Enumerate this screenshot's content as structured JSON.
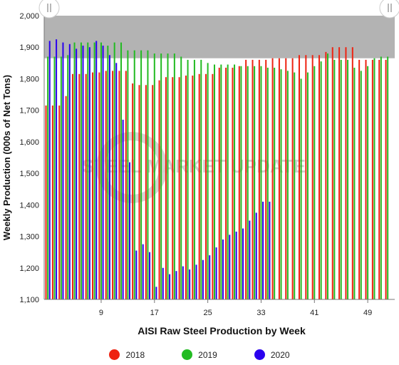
{
  "colors": {
    "series_2018": "#ee2211",
    "series_2019": "#22bb22",
    "series_2020": "#2a00ee",
    "plot_band": "#b3b3b3"
  },
  "watermark": "STEEL MARKET UPDATE",
  "chart_data": {
    "type": "bar",
    "xlabel": "AISI Raw Steel Production by Week",
    "ylabel": "Weekly Production (000s of Net Tons)",
    "ylim": [
      1100,
      2000
    ],
    "xlim": [
      1,
      52
    ],
    "yticks": [
      "1,100",
      "1,200",
      "1,300",
      "1,400",
      "1,500",
      "1,600",
      "1,700",
      "1,800",
      "1,900",
      "2,000"
    ],
    "xticks": [
      "9",
      "17",
      "25",
      "33",
      "41",
      "49"
    ],
    "grid": false,
    "legend_position": "bottom",
    "series": [
      {
        "name": "2018",
        "x": [
          1,
          2,
          3,
          4,
          5,
          6,
          7,
          8,
          9,
          10,
          11,
          12,
          13,
          14,
          15,
          16,
          17,
          18,
          19,
          20,
          21,
          22,
          23,
          24,
          25,
          26,
          27,
          28,
          29,
          30,
          31,
          32,
          33,
          34,
          35,
          36,
          37,
          38,
          39,
          40,
          41,
          42,
          43,
          44,
          45,
          46,
          47,
          48,
          49,
          50,
          51,
          52
        ],
        "values": [
          1715,
          1715,
          1715,
          1745,
          1815,
          1815,
          1815,
          1820,
          1820,
          1825,
          1825,
          1825,
          1825,
          1785,
          1780,
          1780,
          1780,
          1795,
          1805,
          1805,
          1805,
          1810,
          1810,
          1815,
          1815,
          1815,
          1835,
          1835,
          1835,
          1840,
          1860,
          1860,
          1860,
          1860,
          1865,
          1865,
          1865,
          1865,
          1875,
          1875,
          1875,
          1875,
          1885,
          1900,
          1900,
          1900,
          1900,
          1860,
          1860,
          1860,
          1860,
          1860
        ]
      },
      {
        "name": "2019",
        "x": [
          1,
          2,
          3,
          4,
          5,
          6,
          7,
          8,
          9,
          10,
          11,
          12,
          13,
          14,
          15,
          16,
          17,
          18,
          19,
          20,
          21,
          22,
          23,
          24,
          25,
          26,
          27,
          28,
          29,
          30,
          31,
          32,
          33,
          34,
          35,
          36,
          37,
          38,
          39,
          40,
          41,
          42,
          43,
          44,
          45,
          46,
          47,
          48,
          49,
          50,
          51,
          52
        ],
        "values": [
          1870,
          1870,
          1870,
          1875,
          1915,
          1915,
          1915,
          1915,
          1915,
          1905,
          1915,
          1915,
          1890,
          1890,
          1890,
          1890,
          1880,
          1880,
          1880,
          1880,
          1870,
          1860,
          1860,
          1860,
          1850,
          1845,
          1845,
          1845,
          1845,
          1840,
          1840,
          1840,
          1840,
          1835,
          1835,
          1830,
          1825,
          1820,
          1800,
          1820,
          1840,
          1855,
          1880,
          1860,
          1860,
          1860,
          1835,
          1825,
          1840,
          1865,
          1870,
          1870
        ]
      },
      {
        "name": "2020",
        "x": [
          1,
          2,
          3,
          4,
          5,
          6,
          7,
          8,
          9,
          10,
          11,
          12,
          13,
          14,
          15,
          16,
          17,
          18,
          19,
          20,
          21,
          22,
          23,
          24,
          25,
          26,
          27,
          28,
          29,
          30,
          31,
          32,
          33,
          34
        ],
        "values": [
          1920,
          1925,
          1915,
          1910,
          1895,
          1905,
          1900,
          1920,
          1905,
          1875,
          1850,
          1670,
          1535,
          1255,
          1275,
          1250,
          1140,
          1200,
          1180,
          1190,
          1205,
          1195,
          1210,
          1225,
          1240,
          1265,
          1290,
          1305,
          1315,
          1325,
          1350,
          1375,
          1410,
          1410
        ]
      }
    ]
  }
}
